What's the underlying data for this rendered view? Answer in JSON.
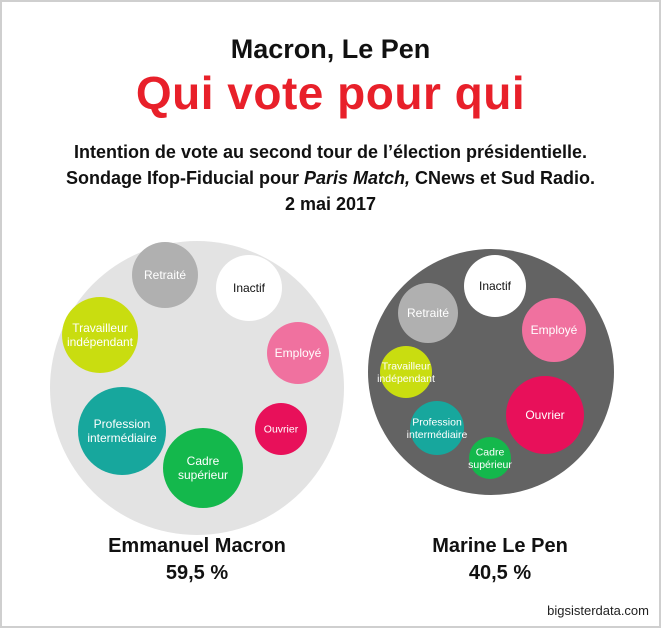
{
  "header": {
    "supertitle": "Macron, Le Pen",
    "title": "Qui vote pour qui",
    "line1": "Intention de vote au second tour de l’élection présidentielle.",
    "line2_before": "Sondage Ifop-Fiducial pour ",
    "line2_italic": "Paris Match,",
    "line2_after": " CNews et Sud Radio.",
    "line3": "2 mai 2017"
  },
  "colors": {
    "Retraité": "#b0b0b0",
    "Inactif": "#ffffff",
    "Employé": "#f0719f",
    "Ouvrier": "#e8105a",
    "Cadre supérieur": "#14b84c",
    "Profession intermédiaire": "#17a79d",
    "Travailleur indépendant": "#c9dd10",
    "macron_bg": "#e3e3e3",
    "lepen_bg": "#636363"
  },
  "chart_data": [
    {
      "type": "bubble",
      "candidate": "Emmanuel Macron",
      "percent": "59,5 %",
      "categories": [
        "Retraité",
        "Inactif",
        "Travailleur indépendant",
        "Employé",
        "Profession intermédiaire",
        "Ouvrier",
        "Cadre supérieur"
      ],
      "labels": [
        [
          "Retraité"
        ],
        [
          "Inactif"
        ],
        [
          "Travailleur",
          "indépendant"
        ],
        [
          "Employé"
        ],
        [
          "Profession",
          "intermédiaire"
        ],
        [
          "Ouvrier"
        ],
        [
          "Cadre",
          "supérieur"
        ]
      ]
    },
    {
      "type": "bubble",
      "candidate": "Marine Le Pen",
      "percent": "40,5 %",
      "categories": [
        "Inactif",
        "Retraité",
        "Employé",
        "Travailleur indépendant",
        "Ouvrier",
        "Profession intermédiaire",
        "Cadre supérieur"
      ],
      "labels": [
        [
          "Inactif"
        ],
        [
          "Retraité"
        ],
        [
          "Employé"
        ],
        [
          "Travailleur",
          "indépendant"
        ],
        [
          "Ouvrier"
        ],
        [
          "Profession",
          "intermédiaire"
        ],
        [
          "Cadre",
          "supérieur"
        ]
      ]
    }
  ],
  "source": "bigsisterdata.com"
}
